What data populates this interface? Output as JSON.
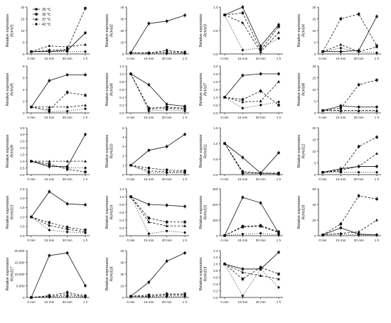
{
  "figure": {
    "x_tick_labels": [
      "0 min",
      "15 min",
      "30 min",
      "1 h"
    ],
    "ylabel_prefix": "Relative expression",
    "legend": [
      {
        "label": "30 ℃",
        "marker": "filled-circle",
        "dash": "solid"
      },
      {
        "label": "35 ℃",
        "marker": "filled-square",
        "dash": "dashed"
      },
      {
        "label": "37 ℃",
        "marker": "filled-triangle",
        "dash": "dashed"
      },
      {
        "label": "42 ℃",
        "marker": "filled-diamond",
        "dash": "dotted"
      }
    ]
  },
  "chart_data": [
    {
      "type": "line",
      "gene": "RcHsf1",
      "yticks": [
        "0",
        "5",
        "10",
        "15",
        "20"
      ],
      "ylim": [
        0,
        20
      ],
      "series": [
        {
          "name": "30 ℃",
          "values": [
            1,
            1,
            1.5,
            9
          ]
        },
        {
          "name": "35 ℃",
          "values": [
            1,
            1.5,
            2,
            19.5
          ]
        },
        {
          "name": "37 ℃",
          "values": [
            1,
            3.5,
            3,
            4
          ]
        },
        {
          "name": "42 ℃",
          "values": [
            1,
            1,
            1,
            1
          ]
        }
      ]
    },
    {
      "type": "line",
      "gene": "RcHsf2",
      "yticks": [
        "0",
        "10",
        "20",
        "30",
        "40"
      ],
      "ylim": [
        0,
        40
      ],
      "series": [
        {
          "name": "30 ℃",
          "values": [
            1,
            26,
            28,
            33
          ]
        },
        {
          "name": "35 ℃",
          "values": [
            1,
            0.8,
            3,
            1.5
          ]
        },
        {
          "name": "37 ℃",
          "values": [
            1,
            1,
            1.5,
            1.2
          ]
        },
        {
          "name": "42 ℃",
          "values": [
            1,
            0.5,
            0.5,
            0.5
          ]
        }
      ]
    },
    {
      "type": "line",
      "gene": "RcHsf3",
      "yticks": [
        "0.0",
        "0.5",
        "1.0"
      ],
      "ylim": [
        0,
        1.2
      ],
      "series": [
        {
          "name": "30 ℃",
          "values": [
            1,
            1.2,
            0.2,
            0.75
          ]
        },
        {
          "name": "35 ℃",
          "values": [
            1,
            1.05,
            0.1,
            0.7
          ]
        },
        {
          "name": "37 ℃",
          "values": [
            1,
            0.8,
            0.05,
            0.55
          ]
        },
        {
          "name": "42 ℃",
          "values": [
            1,
            0.1,
            0.15,
            0.4
          ]
        }
      ]
    },
    {
      "type": "line",
      "gene": "RcHsf4",
      "yticks": [
        "0",
        "5",
        "10",
        "15",
        "20"
      ],
      "ylim": [
        0,
        20
      ],
      "series": [
        {
          "name": "30 ℃",
          "values": [
            1,
            1,
            1.5,
            16
          ]
        },
        {
          "name": "35 ℃",
          "values": [
            1,
            15,
            17,
            3.5
          ]
        },
        {
          "name": "37 ℃",
          "values": [
            1,
            4,
            1,
            3
          ]
        },
        {
          "name": "42 ℃",
          "values": [
            1,
            2.5,
            1,
            0.5
          ]
        }
      ]
    },
    {
      "type": "line",
      "gene": "RcHsf5",
      "yticks": [
        "0",
        "2",
        "4",
        "6",
        "8"
      ],
      "ylim": [
        0,
        8
      ],
      "series": [
        {
          "name": "30 ℃",
          "values": [
            1,
            5.5,
            6.5,
            6.5
          ]
        },
        {
          "name": "35 ℃",
          "values": [
            1,
            0.5,
            3.5,
            3
          ]
        },
        {
          "name": "37 ℃",
          "values": [
            1,
            1,
            1,
            1.3
          ]
        },
        {
          "name": "42 ℃",
          "values": [
            1,
            0.2,
            0.3,
            0.7
          ]
        }
      ]
    },
    {
      "type": "line",
      "gene": "RcHsf6",
      "yticks": [
        "0.0",
        "0.2",
        "0.4",
        "0.6",
        "0.8",
        "1.0",
        "1.2"
      ],
      "ylim": [
        0,
        1.2
      ],
      "series": [
        {
          "name": "30 ℃",
          "values": [
            1,
            0.72,
            0.22,
            0.17
          ]
        },
        {
          "name": "35 ℃",
          "values": [
            1,
            0.12,
            0.15,
            0.12
          ]
        },
        {
          "name": "37 ℃",
          "values": [
            1,
            0.1,
            0.12,
            0.1
          ]
        },
        {
          "name": "42 ℃",
          "values": [
            1,
            0.05,
            0.08,
            0.05
          ]
        }
      ]
    },
    {
      "type": "line",
      "gene": "RcHsf7",
      "yticks": [
        "0.0",
        "0.5",
        "1.0",
        "1.5",
        "2.0",
        "2.5",
        "3.0"
      ],
      "ylim": [
        0,
        3
      ],
      "series": [
        {
          "name": "30 ℃",
          "values": [
            1,
            2.4,
            2.5,
            2.5
          ]
        },
        {
          "name": "35 ℃",
          "values": [
            1,
            0.85,
            1.4,
            0.5
          ]
        },
        {
          "name": "37 ℃",
          "values": [
            1,
            0.7,
            0.75,
            2
          ]
        },
        {
          "name": "42 ℃",
          "values": [
            1,
            0.3,
            0.5,
            0.7
          ]
        }
      ]
    },
    {
      "type": "line",
      "gene": "RcHsf8",
      "yticks": [
        "0",
        "5",
        "10",
        "15",
        "20"
      ],
      "ylim": [
        0,
        20
      ],
      "series": [
        {
          "name": "30 ℃",
          "values": [
            1,
            3,
            2.5,
            2.5
          ]
        },
        {
          "name": "35 ℃",
          "values": [
            1,
            2,
            12,
            14
          ]
        },
        {
          "name": "37 ℃",
          "values": [
            1,
            1,
            1,
            1
          ]
        },
        {
          "name": "42 ℃",
          "values": [
            1,
            0.8,
            0.8,
            0.8
          ]
        }
      ]
    },
    {
      "type": "line",
      "gene": "RcHsf9",
      "yticks": [
        "0.0",
        "0.5",
        "1.0",
        "1.5",
        "2.0",
        "2.5",
        "3.0",
        "3.5"
      ],
      "ylim": [
        0,
        3.5
      ],
      "series": [
        {
          "name": "30 ℃",
          "values": [
            1,
            0.6,
            0.6,
            3
          ]
        },
        {
          "name": "35 ℃",
          "values": [
            1,
            0.8,
            0.4,
            0.2
          ]
        },
        {
          "name": "37 ℃",
          "values": [
            1,
            1,
            1,
            1
          ]
        },
        {
          "name": "42 ℃",
          "values": [
            1,
            0.7,
            0.5,
            0.5
          ]
        }
      ]
    },
    {
      "type": "line",
      "gene": "RcHsf10",
      "yticks": [
        "0",
        "1",
        "2",
        "3",
        "4",
        "5"
      ],
      "ylim": [
        0,
        5
      ],
      "series": [
        {
          "name": "30 ℃",
          "values": [
            1,
            2.6,
            3,
            4.3
          ]
        },
        {
          "name": "35 ℃",
          "values": [
            1,
            0.7,
            0.5,
            0.4
          ]
        },
        {
          "name": "37 ℃",
          "values": [
            1,
            0.4,
            0.3,
            0.3
          ]
        },
        {
          "name": "42 ℃",
          "values": [
            1,
            0.2,
            0.2,
            0.2
          ]
        }
      ]
    },
    {
      "type": "line",
      "gene": "RcHsf11",
      "yticks": [
        "0.0",
        "0.5",
        "1.0",
        "1.5"
      ],
      "ylim": [
        0,
        1.5
      ],
      "series": [
        {
          "name": "30 ℃",
          "values": [
            1,
            0.55,
            0.05,
            0.7
          ]
        },
        {
          "name": "35 ℃",
          "values": [
            1,
            0.1,
            0.05,
            0.05
          ]
        },
        {
          "name": "37 ℃",
          "values": [
            1,
            0.05,
            0.05,
            0.02
          ]
        },
        {
          "name": "42 ℃",
          "values": [
            1,
            0.05,
            0.03,
            0.03
          ]
        }
      ]
    },
    {
      "type": "line",
      "gene": "RcHsf12",
      "yticks": [
        "0",
        "5",
        "10",
        "15",
        "20"
      ],
      "ylim": [
        0,
        20
      ],
      "series": [
        {
          "name": "30 ℃",
          "values": [
            1,
            2.5,
            3.5,
            3.5
          ]
        },
        {
          "name": "35 ℃",
          "values": [
            1,
            1.5,
            12,
            16
          ]
        },
        {
          "name": "37 ℃",
          "values": [
            1,
            2,
            3.5,
            9
          ]
        },
        {
          "name": "42 ℃",
          "values": [
            1,
            1,
            1,
            1
          ]
        }
      ]
    },
    {
      "type": "line",
      "gene": "RcHsf13",
      "yticks": [
        "0.0",
        "0.5",
        "1.0",
        "1.5",
        "2.0",
        "2.5"
      ],
      "ylim": [
        0,
        2.5
      ],
      "series": [
        {
          "name": "30 ℃",
          "values": [
            1,
            2.35,
            1.7,
            1.65
          ]
        },
        {
          "name": "35 ℃",
          "values": [
            1,
            0.7,
            0.45,
            0.3
          ]
        },
        {
          "name": "37 ℃",
          "values": [
            1,
            0.55,
            0.35,
            0.2
          ]
        },
        {
          "name": "42 ℃",
          "values": [
            1,
            0.3,
            0.2,
            0.15
          ]
        }
      ]
    },
    {
      "type": "line",
      "gene": "RcHsf14",
      "yticks": [
        "0.0",
        "0.2",
        "0.4",
        "0.6",
        "0.8",
        "1.0",
        "1.2"
      ],
      "ylim": [
        0,
        1.2
      ],
      "series": [
        {
          "name": "30 ℃",
          "values": [
            1,
            0.8,
            0.78,
            0.75
          ]
        },
        {
          "name": "35 ℃",
          "values": [
            1,
            0.45,
            0.35,
            0.35
          ]
        },
        {
          "name": "37 ℃",
          "values": [
            1,
            0.35,
            0.25,
            0.25
          ]
        },
        {
          "name": "42 ℃",
          "values": [
            1,
            0.05,
            0.12,
            0.08
          ]
        }
      ]
    },
    {
      "type": "line",
      "gene": "RcHsf15",
      "yticks": [
        "0",
        "100",
        "200",
        "300"
      ],
      "ylim": [
        0,
        300
      ],
      "series": [
        {
          "name": "30 ℃",
          "values": [
            1,
            245,
            210,
            15
          ]
        },
        {
          "name": "35 ℃",
          "values": [
            1,
            60,
            65,
            25
          ]
        },
        {
          "name": "37 ℃",
          "values": [
            1,
            55,
            60,
            20
          ]
        },
        {
          "name": "42 ℃",
          "values": [
            1,
            10,
            15,
            5
          ]
        }
      ]
    },
    {
      "type": "line",
      "gene": "RcHsf16",
      "yticks": [
        "0",
        "20",
        "40",
        "60"
      ],
      "ylim": [
        0,
        60
      ],
      "series": [
        {
          "name": "30 ℃",
          "values": [
            1,
            10,
            2,
            1
          ]
        },
        {
          "name": "35 ℃",
          "values": [
            1,
            15,
            51,
            47
          ]
        },
        {
          "name": "37 ℃",
          "values": [
            1,
            3,
            5,
            20
          ]
        },
        {
          "name": "42 ℃",
          "values": [
            1,
            2,
            1,
            1
          ]
        }
      ]
    },
    {
      "type": "line",
      "gene": "RcHsf17",
      "yticks": [
        "0",
        "5,000",
        "10,000",
        "15,000",
        "20,000"
      ],
      "ylim": [
        0,
        20000
      ],
      "series": [
        {
          "name": "30 ℃",
          "values": [
            1,
            17900,
            19000,
            5000
          ]
        },
        {
          "name": "35 ℃",
          "values": [
            1,
            800,
            2100,
            700
          ]
        },
        {
          "name": "37 ℃",
          "values": [
            1,
            400,
            1200,
            400
          ]
        },
        {
          "name": "42 ℃",
          "values": [
            1,
            200,
            500,
            200
          ]
        }
      ]
    },
    {
      "type": "line",
      "gene": "RcHsf18",
      "yticks": [
        "0",
        "10",
        "20",
        "30",
        "40"
      ],
      "ylim": [
        0,
        40
      ],
      "series": [
        {
          "name": "30 ℃",
          "values": [
            1,
            13,
            31,
            38
          ]
        },
        {
          "name": "35 ℃",
          "values": [
            1,
            2,
            3,
            3
          ]
        },
        {
          "name": "37 ℃",
          "values": [
            1,
            1,
            2,
            2
          ]
        },
        {
          "name": "42 ℃",
          "values": [
            1,
            0.5,
            1,
            1
          ]
        }
      ]
    },
    {
      "type": "line",
      "gene": "RcHsf19",
      "yticks": [
        "0.0",
        "0.2",
        "0.4",
        "0.6",
        "0.8",
        "1.0",
        "1.2",
        "1.4"
      ],
      "ylim": [
        0,
        1.4
      ],
      "series": [
        {
          "name": "30 ℃",
          "values": [
            1,
            0.85,
            0.85,
            1.35
          ]
        },
        {
          "name": "35 ℃",
          "values": [
            1,
            0.55,
            0.9,
            0.7
          ]
        },
        {
          "name": "37 ℃",
          "values": [
            1,
            0.75,
            0.65,
            0.55
          ]
        },
        {
          "name": "42 ℃",
          "values": [
            1,
            0.05,
            0.85,
            0.3
          ]
        }
      ]
    }
  ]
}
